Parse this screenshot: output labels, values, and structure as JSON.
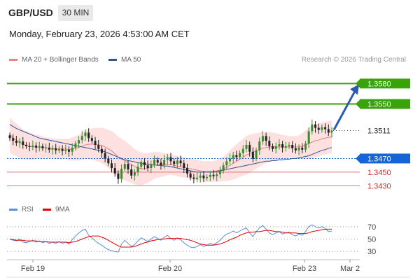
{
  "header": {
    "symbol": "GBP/USD",
    "timeframe": "30 MIN",
    "datetime": "Monday, February 23, 2026 4:53:00 AM CET"
  },
  "legend": {
    "bollinger": {
      "label": "MA 20 + Bollinger Bands",
      "color": "#f08080"
    },
    "ma50": {
      "label": "MA 50",
      "color": "#2f5597"
    },
    "credit": "Research © 2026 Trading Central"
  },
  "rsi_legend": {
    "rsi": {
      "label": "RSI",
      "color": "#5b8fd9"
    },
    "ma9": {
      "label": "9MA",
      "color": "#e00000"
    }
  },
  "colors": {
    "bull": "#3a8a2e",
    "bear": "#222222",
    "resistance": "#3aa30a",
    "support": "#1565d8",
    "target": "#e57373",
    "arrow": "#2a5db0",
    "band": "#fde0e0"
  },
  "chart_data": {
    "type": "candlestick",
    "price_axis": {
      "min": 1.3415,
      "max": 1.3605
    },
    "x_ticks": [
      "Feb 19",
      "Feb 20",
      "Feb 23",
      "Mar 2"
    ],
    "current_price": "1.3511",
    "levels": [
      {
        "label": "1.3580",
        "value": 1.358,
        "kind": "resistance"
      },
      {
        "label": "1.3550",
        "value": 1.355,
        "kind": "resistance"
      },
      {
        "label": "1.3511",
        "value": 1.3511,
        "kind": "current"
      },
      {
        "label": "1.3470",
        "value": 1.347,
        "kind": "pivot"
      },
      {
        "label": "1.3450",
        "value": 1.345,
        "kind": "support"
      },
      {
        "label": "1.3430",
        "value": 1.343,
        "kind": "support"
      }
    ],
    "forecast_arrow": {
      "from": 1.3511,
      "to": 1.358
    },
    "closes": [
      1.35,
      1.3496,
      1.3493,
      1.3495,
      1.349,
      1.3488,
      1.3487,
      1.3489,
      1.3486,
      1.3488,
      1.3485,
      1.3486,
      1.3483,
      1.3485,
      1.3482,
      1.3484,
      1.3481,
      1.3483,
      1.348,
      1.3486,
      1.3492,
      1.3497,
      1.3503,
      1.3508,
      1.35,
      1.3496,
      1.349,
      1.3484,
      1.3478,
      1.347,
      1.3463,
      1.3456,
      1.3448,
      1.344,
      1.3455,
      1.3462,
      1.3454,
      1.3445,
      1.345,
      1.3458,
      1.3465,
      1.346,
      1.3456,
      1.3462,
      1.3468,
      1.3464,
      1.346,
      1.3468,
      1.3472,
      1.3466,
      1.3462,
      1.3467,
      1.3463,
      1.3456,
      1.3448,
      1.3442,
      1.344,
      1.3442,
      1.3445,
      1.3441,
      1.3443,
      1.3446,
      1.3444,
      1.3447,
      1.3452,
      1.346,
      1.3466,
      1.347,
      1.3475,
      1.3472,
      1.3478,
      1.3484,
      1.349,
      1.348,
      1.347,
      1.3482,
      1.3495,
      1.3503,
      1.3496,
      1.3488,
      1.3484,
      1.3488,
      1.3491,
      1.3486,
      1.3488,
      1.349,
      1.3485,
      1.3482,
      1.3486,
      1.3483,
      1.3492,
      1.351,
      1.352,
      1.3515,
      1.3512,
      1.3516,
      1.3513,
      1.3508,
      1.3511
    ],
    "ma20": [
      1.3505,
      1.35,
      1.3497,
      1.3494,
      1.3491,
      1.3489,
      1.3488,
      1.3487,
      1.3487,
      1.3487,
      1.3486,
      1.3486,
      1.3485,
      1.3485,
      1.3484,
      1.3484,
      1.3484,
      1.3484,
      1.3483,
      1.3484,
      1.3485,
      1.3486,
      1.3488,
      1.349,
      1.3491,
      1.3491,
      1.3491,
      1.349,
      1.3489,
      1.3487,
      1.3484,
      1.3481,
      1.3477,
      1.3472,
      1.3469,
      1.3467,
      1.3464,
      1.3461,
      1.3458,
      1.3456,
      1.3455,
      1.3455,
      1.3456,
      1.3458,
      1.346,
      1.3461,
      1.3461,
      1.3461,
      1.3461,
      1.3461,
      1.346,
      1.3459,
      1.3458,
      1.3457,
      1.3456,
      1.3455,
      1.3454,
      1.3453,
      1.3452,
      1.3451,
      1.3451,
      1.3451,
      1.3451,
      1.3452,
      1.3453,
      1.3455,
      1.3457,
      1.346,
      1.3463,
      1.3466,
      1.3469,
      1.3472,
      1.3475,
      1.3477,
      1.3479,
      1.3481,
      1.3483,
      1.3485,
      1.3486,
      1.3487,
      1.3487,
      1.3487,
      1.3487,
      1.3487,
      1.3487,
      1.3487,
      1.3487,
      1.3487,
      1.3487,
      1.3488,
      1.349,
      1.3492,
      1.3494,
      1.3496,
      1.3497,
      1.3499,
      1.35,
      1.3501,
      1.3502
    ],
    "ma50": [
      1.352,
      1.3517,
      1.3514,
      1.3512,
      1.351,
      1.3508,
      1.3506,
      1.3504,
      1.3502,
      1.35,
      1.3499,
      1.3498,
      1.3497,
      1.3496,
      1.3495,
      1.3494,
      1.3493,
      1.3492,
      1.3491,
      1.349,
      1.3489,
      1.3488,
      1.3487,
      1.3486,
      1.3485,
      1.3484,
      1.3483,
      1.3482,
      1.3481,
      1.348,
      1.3478,
      1.3476,
      1.3474,
      1.3472,
      1.347,
      1.3468,
      1.3467,
      1.3466,
      1.3465,
      1.3464,
      1.3463,
      1.3462,
      1.3462,
      1.3461,
      1.3461,
      1.346,
      1.346,
      1.3459,
      1.3459,
      1.3458,
      1.3457,
      1.3456,
      1.3455,
      1.3454,
      1.3453,
      1.3452,
      1.3451,
      1.345,
      1.345,
      1.345,
      1.345,
      1.345,
      1.345,
      1.3451,
      1.3452,
      1.3453,
      1.3454,
      1.3455,
      1.3456,
      1.3457,
      1.3458,
      1.3459,
      1.346,
      1.3461,
      1.3462,
      1.3463,
      1.3464,
      1.3465,
      1.3466,
      1.3466,
      1.3467,
      1.3467,
      1.3468,
      1.3468,
      1.3469,
      1.3469,
      1.347,
      1.347,
      1.3471,
      1.3472,
      1.3473,
      1.3474,
      1.3476,
      1.3478,
      1.348,
      1.3482,
      1.3483,
      1.3485,
      1.3486
    ],
    "band_width": [
      0.0026,
      0.0025,
      0.0024,
      0.0023,
      0.0022,
      0.0021,
      0.002,
      0.0019,
      0.0018,
      0.0017,
      0.0016,
      0.0015,
      0.0015,
      0.0015,
      0.0015,
      0.0015,
      0.0015,
      0.0015,
      0.0016,
      0.0017,
      0.0018,
      0.0019,
      0.002,
      0.0021,
      0.0022,
      0.0023,
      0.0024,
      0.0025,
      0.0026,
      0.0027,
      0.0028,
      0.0029,
      0.003,
      0.003,
      0.003,
      0.0029,
      0.0028,
      0.0027,
      0.0026,
      0.0025,
      0.0024,
      0.0023,
      0.0022,
      0.0021,
      0.002,
      0.0019,
      0.0018,
      0.0017,
      0.0016,
      0.0015,
      0.0015,
      0.0015,
      0.0015,
      0.0015,
      0.0015,
      0.0015,
      0.0015,
      0.0015,
      0.0015,
      0.0015,
      0.0015,
      0.0015,
      0.0015,
      0.0016,
      0.0017,
      0.0018,
      0.002,
      0.0022,
      0.0024,
      0.0025,
      0.0026,
      0.0027,
      0.0028,
      0.0028,
      0.0027,
      0.0026,
      0.0025,
      0.0024,
      0.0023,
      0.0022,
      0.0021,
      0.002,
      0.0019,
      0.0018,
      0.0017,
      0.0016,
      0.0016,
      0.0016,
      0.0017,
      0.0019,
      0.0021,
      0.0023,
      0.0024,
      0.0024,
      0.0024,
      0.0024,
      0.0024,
      0.0024,
      0.0024
    ],
    "rsi": {
      "ticks": [
        70,
        50,
        30
      ],
      "rsi": [
        50,
        48,
        47,
        50,
        45,
        44,
        46,
        48,
        45,
        47,
        44,
        46,
        43,
        45,
        43,
        46,
        43,
        45,
        42,
        49,
        55,
        60,
        64,
        66,
        56,
        52,
        47,
        43,
        40,
        36,
        33,
        31,
        30,
        29,
        42,
        48,
        43,
        38,
        41,
        47,
        52,
        49,
        46,
        50,
        54,
        51,
        48,
        53,
        56,
        51,
        48,
        52,
        49,
        44,
        40,
        37,
        36,
        38,
        41,
        38,
        40,
        43,
        41,
        44,
        48,
        54,
        58,
        60,
        63,
        60,
        63,
        66,
        68,
        60,
        54,
        62,
        68,
        72,
        66,
        60,
        57,
        60,
        62,
        58,
        60,
        61,
        57,
        55,
        58,
        56,
        62,
        70,
        73,
        70,
        68,
        70,
        67,
        62,
        63
      ],
      "ma9": [
        50,
        49,
        48,
        48,
        48,
        47,
        47,
        47,
        47,
        46,
        46,
        46,
        45,
        45,
        45,
        45,
        45,
        45,
        44,
        45,
        46,
        48,
        50,
        52,
        54,
        55,
        55,
        55,
        53,
        51,
        48,
        45,
        42,
        39,
        37,
        37,
        37,
        37,
        38,
        40,
        42,
        44,
        45,
        47,
        48,
        49,
        50,
        50,
        51,
        51,
        51,
        51,
        51,
        50,
        49,
        48,
        46,
        44,
        42,
        41,
        40,
        40,
        40,
        41,
        42,
        44,
        46,
        49,
        51,
        53,
        56,
        58,
        60,
        61,
        61,
        62,
        62,
        63,
        64,
        64,
        63,
        62,
        62,
        61,
        60,
        60,
        60,
        60,
        59,
        59,
        59,
        60,
        62,
        63,
        64,
        65,
        66,
        66,
        66
      ]
    }
  }
}
